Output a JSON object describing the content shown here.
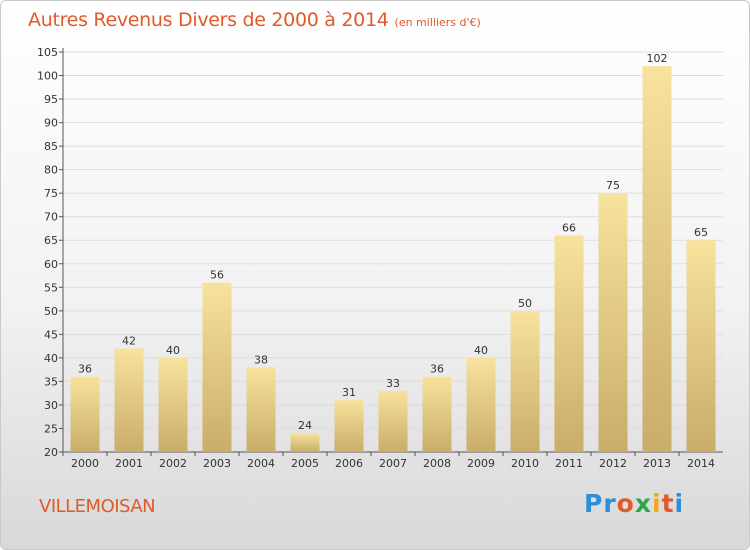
{
  "title": "Autres Revenus Divers de 2000 à 2014",
  "unit": "(en milliers d'€)",
  "town": "VILLEMOISAN",
  "logo": {
    "letters": [
      "P",
      "r",
      "o",
      "x",
      "i",
      "t",
      "i"
    ],
    "colors": [
      "#2a8fd6",
      "#2a8fd6",
      "#e05a2a",
      "#2aa84a",
      "#f2a81d",
      "#e05a2a",
      "#2a8fd6"
    ]
  },
  "colors": {
    "title": "#e05a2a",
    "bar_light": "#f7e29e",
    "bar_dark": "#c9ad68",
    "gridline": "#dddddd"
  },
  "chart_data": {
    "type": "bar",
    "categories": [
      "2000",
      "2001",
      "2002",
      "2003",
      "2004",
      "2005",
      "2006",
      "2007",
      "2008",
      "2009",
      "2010",
      "2011",
      "2012",
      "2013",
      "2014"
    ],
    "values": [
      36,
      42,
      40,
      56,
      38,
      24,
      31,
      33,
      36,
      40,
      50,
      66,
      75,
      102,
      65
    ],
    "ylim": [
      20,
      105
    ],
    "yticks": [
      20,
      25,
      30,
      35,
      40,
      45,
      50,
      55,
      60,
      65,
      70,
      75,
      80,
      85,
      90,
      95,
      100,
      105
    ],
    "grid": true
  }
}
